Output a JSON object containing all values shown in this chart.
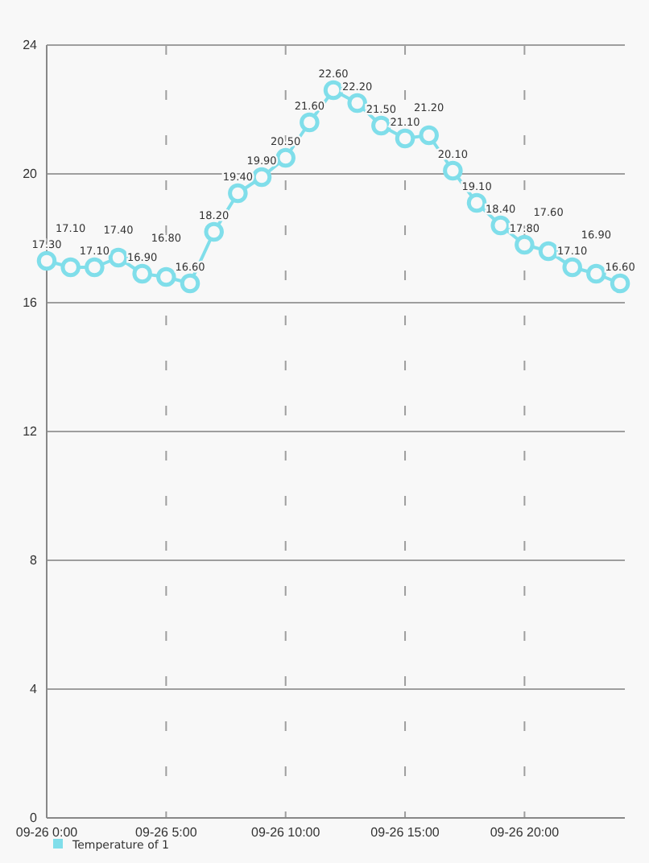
{
  "chart_data": {
    "type": "line",
    "categories": [
      "09-26 0:00",
      null,
      null,
      null,
      null,
      "09-26 5:00",
      null,
      null,
      null,
      null,
      "09-26 10:00",
      null,
      null,
      null,
      null,
      "09-26 15:00",
      null,
      null,
      null,
      null,
      "09-26 20:00",
      null,
      null,
      null,
      null
    ],
    "series": [
      {
        "name": "Temperature of 1",
        "color": "#80deea",
        "values": [
          17.3,
          17.1,
          17.1,
          17.4,
          16.9,
          16.8,
          16.6,
          18.2,
          19.4,
          19.9,
          20.5,
          21.6,
          22.6,
          22.2,
          21.5,
          21.1,
          21.2,
          20.1,
          19.1,
          18.4,
          17.8,
          17.6,
          17.1,
          16.9,
          16.6
        ],
        "value_labels": [
          "17.30",
          "17.10",
          "17.10",
          "17.40",
          "16.90",
          "16.80",
          "16.60",
          "18.20",
          "19.40",
          "19.90",
          "20.50",
          "21.60",
          "22.60",
          "22.20",
          "21.50",
          "21.10",
          "21.20",
          "20.10",
          "19.10",
          "18.40",
          "17.80",
          "17.60",
          "17.10",
          "16.90",
          "16.60"
        ]
      }
    ],
    "ylim": [
      0,
      24
    ],
    "yticks": [
      0,
      4,
      8,
      12,
      16,
      20,
      24
    ],
    "grid": true,
    "legend": "bottom left",
    "marker": "circle",
    "line_style": "solid"
  }
}
